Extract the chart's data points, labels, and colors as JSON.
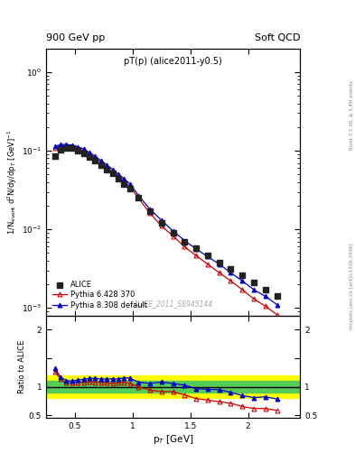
{
  "title_left": "900 GeV pp",
  "title_right": "Soft QCD",
  "plot_title": "pT(p) (alice2011-y0.5)",
  "watermark": "ALICE_2011_S8945144",
  "right_label_top": "Rivet 3.1.10, ≥ 3.4M events",
  "right_label_bot": "mcplots.cern.ch [arXiv:1306.3436]",
  "ylabel_main": "1/N$_{event}$ d$^2$N/dy/dp$_T$ [GeV]$^{-1}$",
  "ylabel_ratio": "Ratio to ALICE",
  "xlabel": "p$_T$ [GeV]",
  "alice_x": [
    0.325,
    0.375,
    0.425,
    0.475,
    0.525,
    0.575,
    0.625,
    0.675,
    0.725,
    0.775,
    0.825,
    0.875,
    0.925,
    0.975,
    1.05,
    1.15,
    1.25,
    1.35,
    1.45,
    1.55,
    1.65,
    1.75,
    1.85,
    1.95,
    2.05,
    2.15,
    2.25
  ],
  "alice_y": [
    0.085,
    0.103,
    0.108,
    0.107,
    0.1,
    0.093,
    0.083,
    0.074,
    0.066,
    0.058,
    0.051,
    0.044,
    0.038,
    0.033,
    0.025,
    0.017,
    0.012,
    0.009,
    0.007,
    0.0058,
    0.0047,
    0.0038,
    0.0031,
    0.0026,
    0.0021,
    0.0017,
    0.0014
  ],
  "pythia6_x": [
    0.325,
    0.375,
    0.425,
    0.475,
    0.525,
    0.575,
    0.625,
    0.675,
    0.725,
    0.775,
    0.825,
    0.875,
    0.925,
    0.975,
    1.05,
    1.15,
    1.25,
    1.35,
    1.45,
    1.55,
    1.65,
    1.75,
    1.85,
    1.95,
    2.05,
    2.15,
    2.25
  ],
  "pythia6_y": [
    0.108,
    0.116,
    0.116,
    0.114,
    0.108,
    0.1,
    0.09,
    0.08,
    0.071,
    0.062,
    0.054,
    0.047,
    0.041,
    0.035,
    0.025,
    0.016,
    0.011,
    0.0082,
    0.006,
    0.0046,
    0.0036,
    0.0028,
    0.0022,
    0.0017,
    0.0013,
    0.00105,
    0.00082
  ],
  "pythia8_x": [
    0.325,
    0.375,
    0.425,
    0.475,
    0.525,
    0.575,
    0.625,
    0.675,
    0.725,
    0.775,
    0.825,
    0.875,
    0.925,
    0.975,
    1.05,
    1.15,
    1.25,
    1.35,
    1.45,
    1.55,
    1.65,
    1.75,
    1.85,
    1.95,
    2.05,
    2.15,
    2.25
  ],
  "pythia8_y": [
    0.113,
    0.12,
    0.12,
    0.118,
    0.112,
    0.105,
    0.095,
    0.085,
    0.075,
    0.066,
    0.058,
    0.05,
    0.044,
    0.038,
    0.027,
    0.018,
    0.013,
    0.0095,
    0.0072,
    0.0056,
    0.0045,
    0.0036,
    0.0028,
    0.0022,
    0.0017,
    0.0014,
    0.0011
  ],
  "ratio6_y": [
    1.27,
    1.13,
    1.07,
    1.07,
    1.08,
    1.075,
    1.085,
    1.08,
    1.076,
    1.069,
    1.059,
    1.068,
    1.079,
    1.061,
    1.0,
    0.941,
    0.917,
    0.911,
    0.857,
    0.793,
    0.766,
    0.737,
    0.71,
    0.654,
    0.619,
    0.618,
    0.586
  ],
  "ratio8_y": [
    1.33,
    1.165,
    1.11,
    1.1,
    1.12,
    1.129,
    1.145,
    1.149,
    1.136,
    1.138,
    1.137,
    1.136,
    1.158,
    1.152,
    1.08,
    1.059,
    1.083,
    1.056,
    1.029,
    0.966,
    0.957,
    0.947,
    0.903,
    0.846,
    0.81,
    0.824,
    0.786
  ],
  "band_green_lo": 0.9,
  "band_green_hi": 1.1,
  "band_yellow_lo": 0.8,
  "band_yellow_hi": 1.2,
  "alice_color": "#222222",
  "pythia6_color": "#cc0000",
  "pythia8_color": "#0000cc",
  "xlim": [
    0.25,
    2.45
  ],
  "ylim_main": [
    0.0008,
    2.0
  ],
  "ylim_ratio": [
    0.45,
    2.25
  ]
}
